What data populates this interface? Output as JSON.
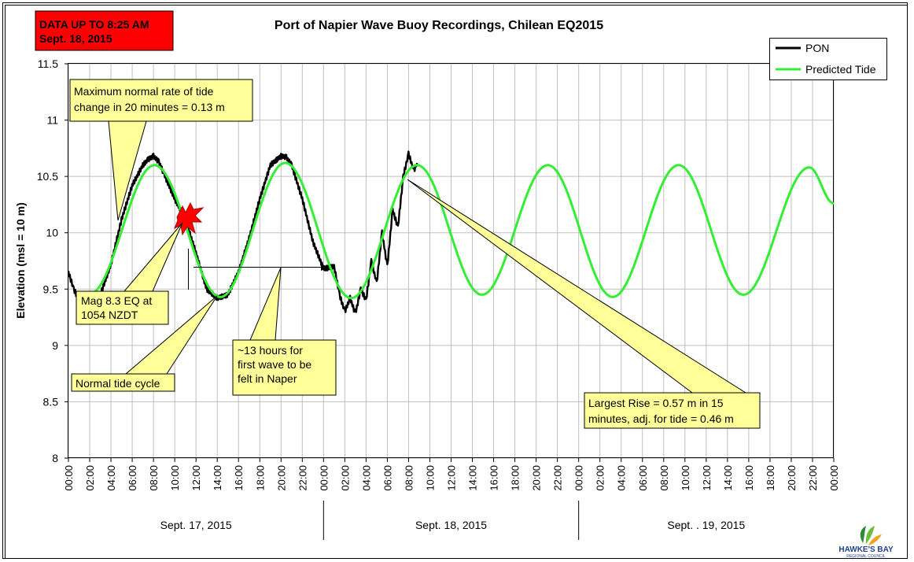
{
  "status_box": {
    "line1": "DATA UP TO 8:25 AM",
    "line2": "Sept. 18, 2015",
    "color": "#ff0000"
  },
  "logo": {
    "line1": "HAWKE'S BAY",
    "line2": "REGIONAL COUNCIL"
  },
  "annotations": {
    "max_rate": [
      "Maximum normal rate of tide",
      "change in 20 minutes = 0.13 m"
    ],
    "eq": [
      "Mag 8.3 EQ at",
      "1054 NZDT"
    ],
    "normal_cycle": [
      "Normal tide cycle"
    ],
    "travel_time": [
      "~13 hours for",
      "first wave to be",
      "felt in Naper"
    ],
    "largest_rise": [
      "Largest Rise = 0.57 m in 15",
      "minutes, adj. for tide = 0.46 m"
    ]
  },
  "chart_data": {
    "type": "line",
    "title": "Port of Napier Wave Buoy Recordings, Chilean EQ2015",
    "xlabel": "",
    "ylabel": "Elevation (msl = 10 m)",
    "ylim": [
      8,
      11.5
    ],
    "yticks": [
      "8",
      "8.5",
      "9",
      "9.5",
      "10",
      "10.5",
      "11",
      "11.5"
    ],
    "xlim_hours": [
      0,
      72
    ],
    "xtick_labels": [
      "00:00",
      "02:00",
      "04:00",
      "06:00",
      "08:00",
      "10:00",
      "12:00",
      "14:00",
      "16:00",
      "18:00",
      "20:00",
      "22:00",
      "00:00",
      "02:00",
      "04:00",
      "06:00",
      "08:00",
      "10:00",
      "12:00",
      "14:00",
      "16:00",
      "18:00",
      "20:00",
      "22:00",
      "00:00",
      "02:00",
      "04:00",
      "06:00",
      "08:00",
      "10:00",
      "12:00",
      "14:00",
      "16:00",
      "18:00",
      "20:00",
      "22:00",
      "00:00"
    ],
    "day_labels": [
      "Sept. 17, 2015",
      "Sept. 18, 2015",
      "Sept. . 19, 2015"
    ],
    "grid": true,
    "legend_position": "top-right",
    "series": [
      {
        "name": "PON",
        "color": "#000000",
        "x": [
          0,
          0.5,
          1,
          2,
          3,
          4,
          5,
          6,
          7,
          7.5,
          8,
          8.5,
          9,
          10,
          11,
          12,
          13,
          14,
          15,
          16,
          17,
          18,
          19,
          20,
          20.5,
          21,
          22,
          23,
          24,
          25,
          25.5,
          26,
          26.5,
          27,
          27.5,
          28,
          28.5,
          29,
          29.5,
          30,
          30.5,
          31,
          31.5,
          32,
          32.5,
          32.8
        ],
        "y": [
          9.65,
          9.5,
          9.4,
          9.38,
          9.45,
          9.72,
          10.12,
          10.42,
          10.6,
          10.65,
          10.68,
          10.63,
          10.52,
          10.3,
          10.12,
          9.82,
          9.5,
          9.42,
          9.45,
          9.65,
          9.95,
          10.3,
          10.6,
          10.68,
          10.67,
          10.6,
          10.3,
          9.92,
          9.68,
          9.7,
          9.45,
          9.3,
          9.42,
          9.28,
          9.5,
          9.4,
          9.75,
          9.55,
          10,
          9.7,
          10.2,
          10.05,
          10.5,
          10.7,
          10.55,
          10.62
        ]
      },
      {
        "name": "Predicted Tide",
        "color": "#33ee33",
        "x": [
          2,
          8.1,
          14.3,
          20.4,
          26.6,
          32.8,
          38.9,
          45.1,
          51.2,
          57.4,
          63.5,
          69.7,
          72
        ],
        "y": [
          9.46,
          10.6,
          9.43,
          10.62,
          9.42,
          10.6,
          9.45,
          10.6,
          9.43,
          10.6,
          9.45,
          10.58,
          10.26
        ]
      }
    ]
  }
}
